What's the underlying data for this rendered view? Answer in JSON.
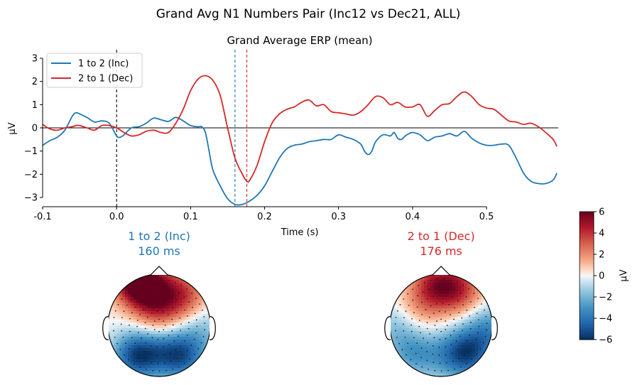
{
  "suptitle": "Grand Avg N1 Numbers Pair (Inc12 vs Dec21, ALL)",
  "chart_data": [
    {
      "type": "line",
      "title": "Grand Average ERP (mean)",
      "xlabel": "Time (s)",
      "ylabel": "µV",
      "xlim": [
        -0.1,
        0.6
      ],
      "ylim": [
        -3.3,
        3.3
      ],
      "xticks": [
        "-0.1",
        "0.0",
        "0.1",
        "0.2",
        "0.3",
        "0.4",
        "0.5"
      ],
      "xtick_values": [
        -0.1,
        0.0,
        0.1,
        0.2,
        0.3,
        0.4,
        0.5
      ],
      "yticks": [
        "−3",
        "−2",
        "−1",
        "0",
        "1",
        "2",
        "3"
      ],
      "ytick_values": [
        -3,
        -2,
        -1,
        0,
        1,
        2,
        3
      ],
      "legend_position": "top-left",
      "zero_line": true,
      "markers": [
        {
          "x": 0.0,
          "color": "#000000",
          "style": "dashed"
        },
        {
          "x": 0.16,
          "color": "#1f77b4",
          "style": "dashed"
        },
        {
          "x": 0.176,
          "color": "#d62728",
          "style": "dashed"
        }
      ],
      "series": [
        {
          "name": "1 to 2 (Inc)",
          "color": "#1f77b4",
          "points": [
            [
              -0.1,
              -0.75
            ],
            [
              -0.09,
              -0.55
            ],
            [
              -0.08,
              -0.4
            ],
            [
              -0.07,
              -0.1
            ],
            [
              -0.06,
              0.5
            ],
            [
              -0.055,
              0.65
            ],
            [
              -0.05,
              0.6
            ],
            [
              -0.04,
              0.45
            ],
            [
              -0.03,
              0.25
            ],
            [
              -0.02,
              0.3
            ],
            [
              -0.01,
              0.2
            ],
            [
              0.0,
              -0.35
            ],
            [
              0.005,
              -0.4
            ],
            [
              0.01,
              -0.3
            ],
            [
              0.02,
              0.0
            ],
            [
              0.03,
              0.05
            ],
            [
              0.04,
              0.2
            ],
            [
              0.05,
              0.42
            ],
            [
              0.06,
              0.35
            ],
            [
              0.07,
              0.28
            ],
            [
              0.08,
              0.45
            ],
            [
              0.09,
              0.3
            ],
            [
              0.1,
              0.1
            ],
            [
              0.11,
              0.05
            ],
            [
              0.115,
              0.05
            ],
            [
              0.12,
              -0.2
            ],
            [
              0.125,
              -1.0
            ],
            [
              0.13,
              -1.8
            ],
            [
              0.14,
              -2.5
            ],
            [
              0.15,
              -3.05
            ],
            [
              0.16,
              -3.3
            ],
            [
              0.17,
              -3.3
            ],
            [
              0.18,
              -3.15
            ],
            [
              0.19,
              -2.9
            ],
            [
              0.2,
              -2.5
            ],
            [
              0.21,
              -1.9
            ],
            [
              0.22,
              -1.3
            ],
            [
              0.23,
              -0.9
            ],
            [
              0.24,
              -0.75
            ],
            [
              0.25,
              -0.7
            ],
            [
              0.26,
              -0.6
            ],
            [
              0.27,
              -0.55
            ],
            [
              0.28,
              -0.5
            ],
            [
              0.29,
              -0.5
            ],
            [
              0.3,
              -0.3
            ],
            [
              0.31,
              -0.4
            ],
            [
              0.32,
              -0.5
            ],
            [
              0.33,
              -0.7
            ],
            [
              0.335,
              -1.0
            ],
            [
              0.34,
              -1.15
            ],
            [
              0.345,
              -1.0
            ],
            [
              0.35,
              -0.6
            ],
            [
              0.36,
              -0.3
            ],
            [
              0.37,
              -0.35
            ],
            [
              0.375,
              -0.2
            ],
            [
              0.38,
              -0.45
            ],
            [
              0.385,
              -0.5
            ],
            [
              0.39,
              -0.35
            ],
            [
              0.395,
              -0.25
            ],
            [
              0.4,
              -0.2
            ],
            [
              0.41,
              -0.3
            ],
            [
              0.42,
              -0.55
            ],
            [
              0.43,
              -0.4
            ],
            [
              0.44,
              -0.35
            ],
            [
              0.45,
              -0.25
            ],
            [
              0.46,
              -0.35
            ],
            [
              0.47,
              -0.15
            ],
            [
              0.48,
              -0.45
            ],
            [
              0.49,
              -0.65
            ],
            [
              0.5,
              -0.75
            ],
            [
              0.51,
              -0.75
            ],
            [
              0.52,
              -0.7
            ],
            [
              0.53,
              -0.75
            ],
            [
              0.54,
              -1.3
            ],
            [
              0.55,
              -1.95
            ],
            [
              0.56,
              -2.3
            ],
            [
              0.57,
              -2.4
            ],
            [
              0.58,
              -2.4
            ],
            [
              0.59,
              -2.25
            ],
            [
              0.595,
              -1.95
            ]
          ]
        },
        {
          "name": "2 to 1 (Dec)",
          "color": "#d62728",
          "points": [
            [
              -0.1,
              0.15
            ],
            [
              -0.09,
              -0.05
            ],
            [
              -0.08,
              -0.1
            ],
            [
              -0.07,
              0.0
            ],
            [
              -0.06,
              0.05
            ],
            [
              -0.055,
              0.1
            ],
            [
              -0.05,
              0.1
            ],
            [
              -0.04,
              0.0
            ],
            [
              -0.03,
              -0.1
            ],
            [
              -0.02,
              0.1
            ],
            [
              -0.01,
              0.1
            ],
            [
              0.0,
              0.0
            ],
            [
              0.01,
              -0.2
            ],
            [
              0.02,
              -0.35
            ],
            [
              0.03,
              -0.3
            ],
            [
              0.04,
              -0.15
            ],
            [
              0.05,
              -0.1
            ],
            [
              0.06,
              -0.2
            ],
            [
              0.07,
              -0.2
            ],
            [
              0.08,
              0.2
            ],
            [
              0.09,
              0.8
            ],
            [
              0.1,
              1.6
            ],
            [
              0.11,
              2.1
            ],
            [
              0.12,
              2.25
            ],
            [
              0.13,
              2.05
            ],
            [
              0.14,
              1.4
            ],
            [
              0.15,
              0.0
            ],
            [
              0.16,
              -1.3
            ],
            [
              0.17,
              -2.0
            ],
            [
              0.176,
              -2.3
            ],
            [
              0.18,
              -2.25
            ],
            [
              0.19,
              -1.6
            ],
            [
              0.2,
              -0.6
            ],
            [
              0.21,
              0.2
            ],
            [
              0.22,
              0.6
            ],
            [
              0.23,
              0.8
            ],
            [
              0.24,
              0.9
            ],
            [
              0.25,
              1.1
            ],
            [
              0.26,
              1.2
            ],
            [
              0.27,
              0.95
            ],
            [
              0.28,
              1.0
            ],
            [
              0.29,
              0.7
            ],
            [
              0.3,
              0.65
            ],
            [
              0.31,
              0.6
            ],
            [
              0.32,
              0.55
            ],
            [
              0.33,
              0.7
            ],
            [
              0.34,
              1.0
            ],
            [
              0.35,
              1.35
            ],
            [
              0.36,
              1.3
            ],
            [
              0.37,
              1.0
            ],
            [
              0.38,
              1.1
            ],
            [
              0.39,
              0.9
            ],
            [
              0.4,
              0.9
            ],
            [
              0.41,
              1.0
            ],
            [
              0.42,
              0.5
            ],
            [
              0.43,
              0.75
            ],
            [
              0.44,
              1.0
            ],
            [
              0.45,
              1.05
            ],
            [
              0.46,
              1.35
            ],
            [
              0.47,
              1.55
            ],
            [
              0.48,
              1.35
            ],
            [
              0.49,
              1.0
            ],
            [
              0.5,
              0.85
            ],
            [
              0.51,
              0.8
            ],
            [
              0.52,
              0.55
            ],
            [
              0.53,
              0.3
            ],
            [
              0.54,
              0.25
            ],
            [
              0.55,
              0.15
            ],
            [
              0.56,
              0.2
            ],
            [
              0.57,
              0.05
            ],
            [
              0.58,
              -0.2
            ],
            [
              0.59,
              -0.5
            ],
            [
              0.595,
              -0.8
            ]
          ]
        }
      ]
    },
    {
      "type": "heatmap",
      "subtype": "topomap",
      "title_line1": "1 to 2 (Inc)",
      "title_line2": "160 ms",
      "title_color": "#1f77b4",
      "blobs": [
        {
          "cx": -0.45,
          "cy": -0.9,
          "value": 6
        },
        {
          "cx": -0.15,
          "cy": -0.65,
          "value": 4
        },
        {
          "cx": 0.45,
          "cy": -0.6,
          "value": 3.5
        },
        {
          "cx": 0.0,
          "cy": -0.2,
          "value": 2
        },
        {
          "cx": -0.45,
          "cy": 0.6,
          "value": -5
        },
        {
          "cx": 0.45,
          "cy": 0.6,
          "value": -4.5
        },
        {
          "cx": 0.0,
          "cy": 0.5,
          "value": -2
        },
        {
          "cx": 0.85,
          "cy": 0.1,
          "value": -1.5
        }
      ]
    },
    {
      "type": "heatmap",
      "subtype": "topomap",
      "title_line1": "2 to 1 (Dec)",
      "title_line2": "176 ms",
      "title_color": "#d62728",
      "blobs": [
        {
          "cx": -0.1,
          "cy": -0.8,
          "value": 4
        },
        {
          "cx": 0.35,
          "cy": -0.7,
          "value": 3.5
        },
        {
          "cx": -0.4,
          "cy": -0.35,
          "value": 1.5
        },
        {
          "cx": 0.5,
          "cy": 0.55,
          "value": -5
        },
        {
          "cx": -0.55,
          "cy": 0.55,
          "value": -2.5
        },
        {
          "cx": 0.95,
          "cy": 0.1,
          "value": -3
        },
        {
          "cx": -0.9,
          "cy": 0.05,
          "value": -1.5
        },
        {
          "cx": 0.0,
          "cy": 0.6,
          "value": -1.5
        }
      ]
    },
    {
      "type": "colorbar",
      "label": "µV",
      "vmin": -6,
      "vmax": 6,
      "ticks": [
        "−6",
        "−4",
        "−2",
        "0",
        "2",
        "4",
        "6"
      ],
      "tick_values": [
        -6,
        -4,
        -2,
        0,
        2,
        4,
        6
      ],
      "cmap": "RdBu_r"
    }
  ]
}
